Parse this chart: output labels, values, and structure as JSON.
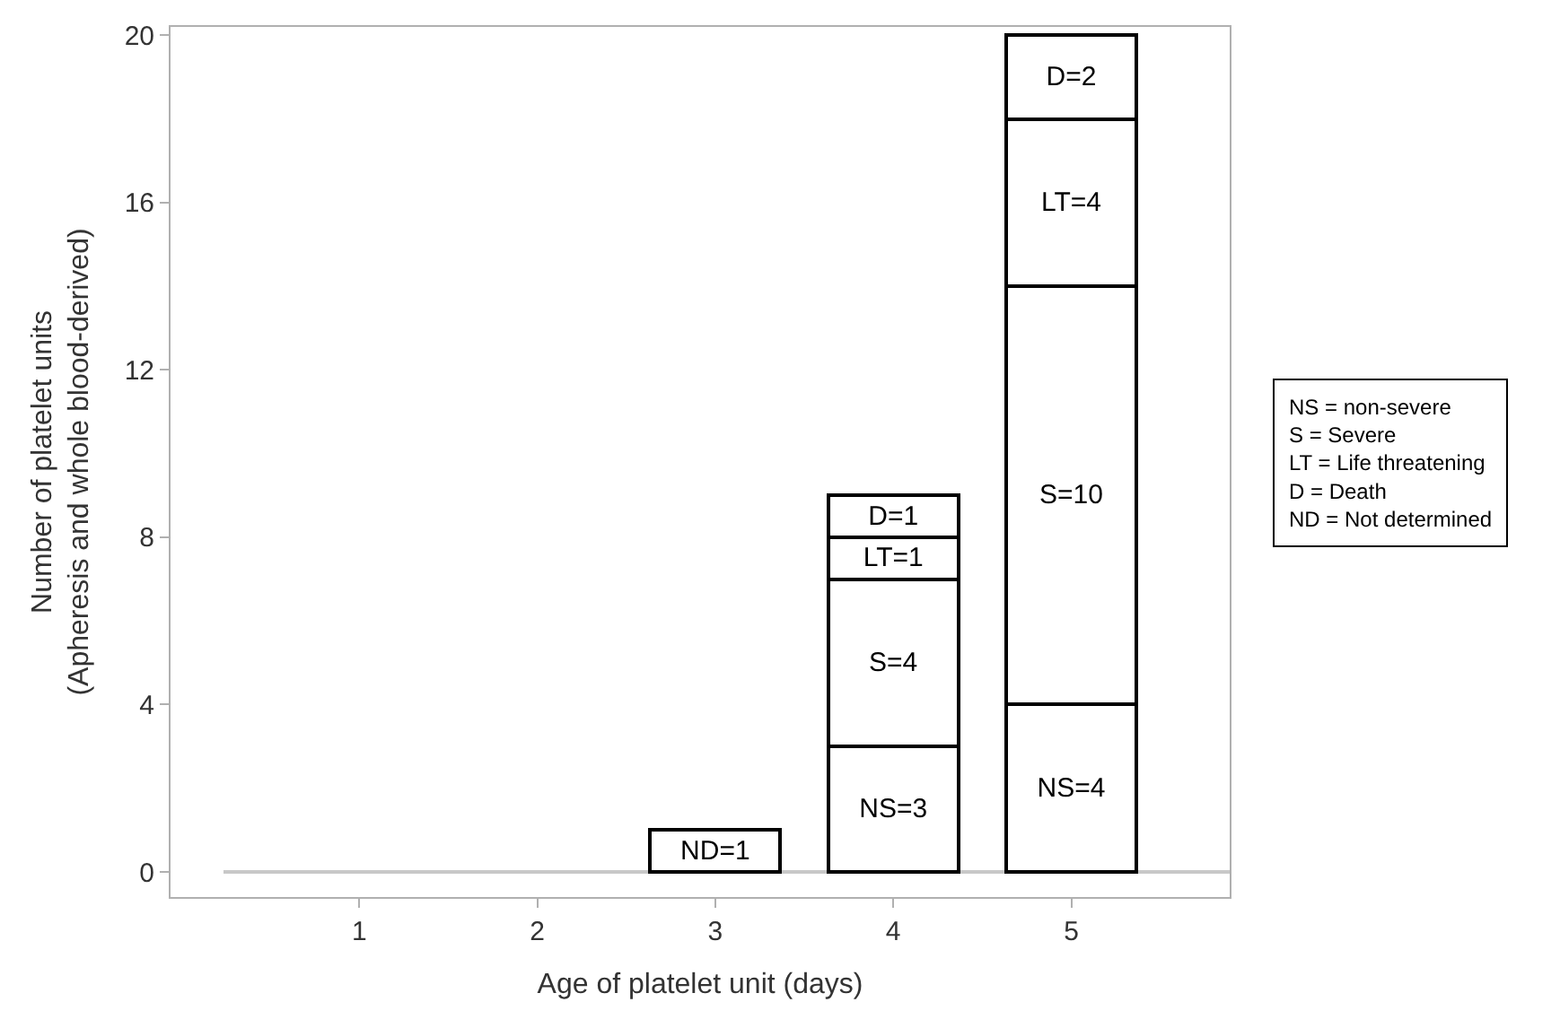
{
  "chart_data": {
    "type": "bar",
    "stacked": true,
    "xlabel": "Age of platelet unit (days)",
    "ylabel": "Number of platelet units\n(Apheresis and whole blood-derived)",
    "categories": [
      "1",
      "2",
      "3",
      "4",
      "5"
    ],
    "series": [
      {
        "color": "#ffffff",
        "values": [
          null,
          null,
          1,
          null,
          null
        ],
        "value_labels": [
          null,
          null,
          "ND=1",
          null,
          null
        ]
      },
      {
        "color": "#ffffff",
        "values": [
          null,
          null,
          null,
          3,
          4
        ],
        "value_labels": [
          null,
          null,
          null,
          "NS=3",
          "NS=4"
        ]
      },
      {
        "color": "#ffffff",
        "values": [
          null,
          null,
          null,
          4,
          10
        ],
        "value_labels": [
          null,
          null,
          null,
          "S=4",
          "S=10"
        ]
      },
      {
        "color": "#ffffff",
        "values": [
          null,
          null,
          null,
          1,
          4
        ],
        "value_labels": [
          null,
          null,
          null,
          "LT=1",
          "LT=4"
        ]
      },
      {
        "color": "#ffffff",
        "values": [
          null,
          null,
          null,
          1,
          2
        ],
        "value_labels": [
          null,
          null,
          null,
          "D=1",
          "D=2"
        ]
      }
    ],
    "ylim": [
      -0.6,
      20.2
    ],
    "yticks": [
      0,
      4,
      8,
      12,
      16,
      20
    ],
    "ref_lines": [
      {
        "axis": "y",
        "value": 0,
        "color": "#c8c8c8"
      }
    ],
    "grid": false,
    "annotations": [
      "NS = non-severe\nS = Severe\nLT = Life threatening\nD = Death\nND = Not determined"
    ]
  }
}
